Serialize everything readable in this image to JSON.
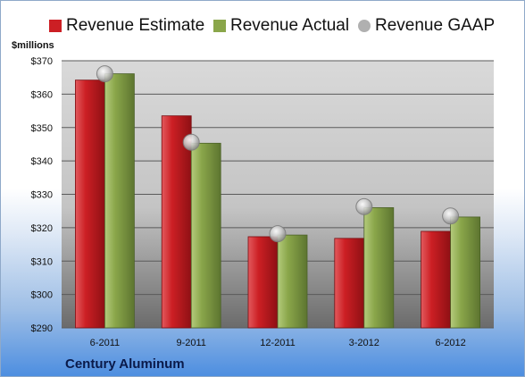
{
  "legend": {
    "estimate_label": "Revenue Estimate",
    "actual_label": "Revenue Actual",
    "gaap_label": "Revenue GAAP"
  },
  "y_unit_label": "$millions",
  "company": "Century Aluminum",
  "colors": {
    "estimate": "#cc1f24",
    "actual": "#8aa64a",
    "gaap": "#b0b0b0",
    "plot_background_top": "#d6d6d6",
    "plot_background_bottom": "#6e6e6e"
  },
  "chart_data": {
    "type": "bar",
    "categories": [
      "6-2011",
      "9-2011",
      "12-2011",
      "3-2012",
      "6-2012"
    ],
    "series": [
      {
        "name": "Revenue Estimate",
        "values": [
          364.2,
          353.5,
          317.3,
          316.8,
          318.9
        ]
      },
      {
        "name": "Revenue Actual",
        "values": [
          366.1,
          345.3,
          317.8,
          326.0,
          323.2
        ]
      },
      {
        "name": "Revenue GAAP",
        "values": [
          366.1,
          345.6,
          318.2,
          326.3,
          323.5
        ],
        "style": "marker"
      }
    ],
    "ylim": [
      290,
      370
    ],
    "yticks": [
      "$290",
      "$300",
      "$310",
      "$320",
      "$330",
      "$340",
      "$350",
      "$360",
      "$370"
    ],
    "ylabel": "$millions",
    "grid": true,
    "legend_position": "top"
  }
}
